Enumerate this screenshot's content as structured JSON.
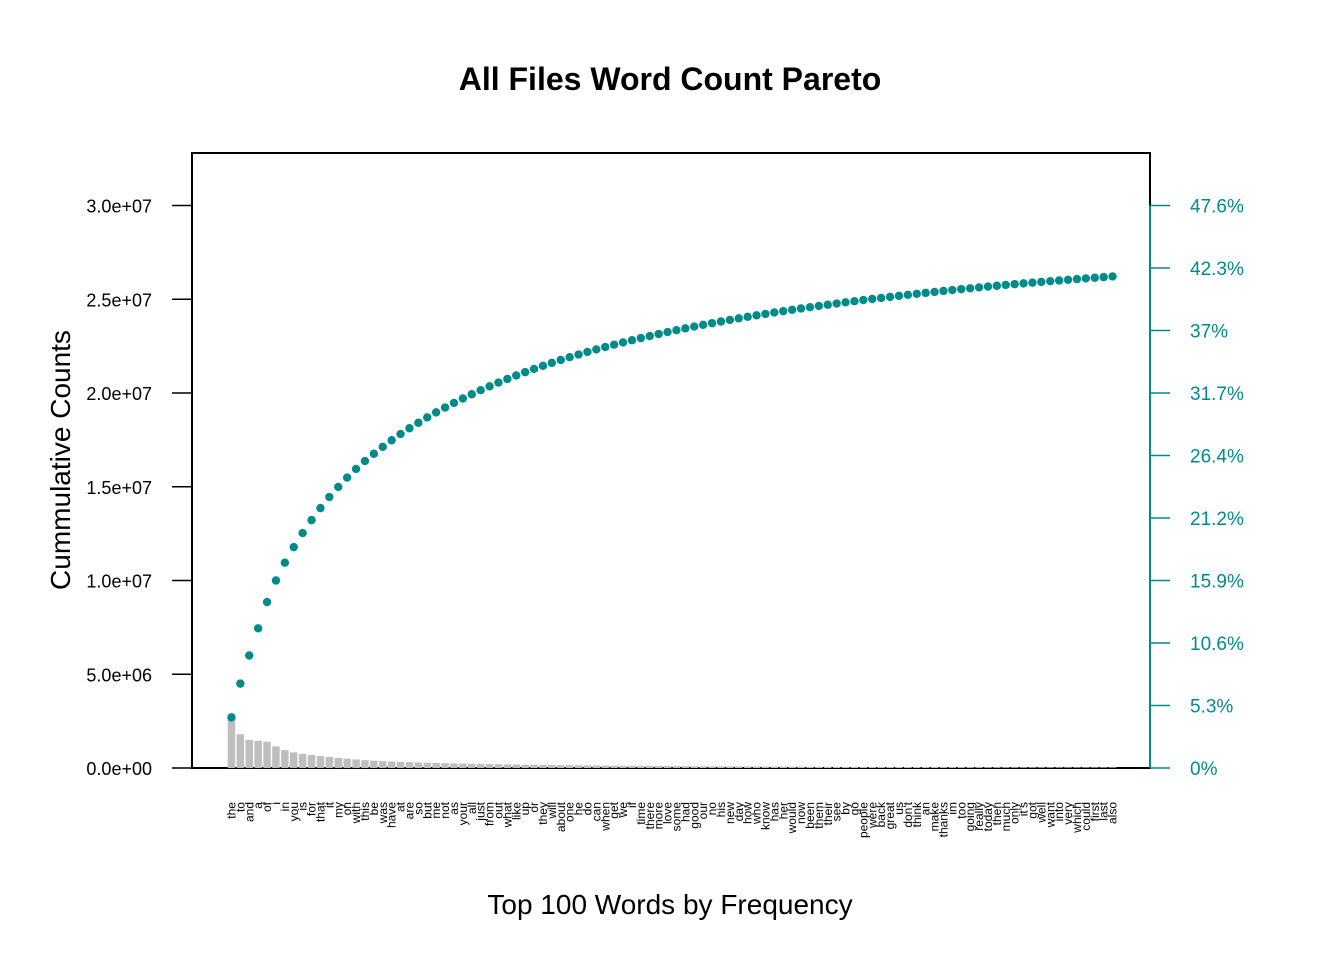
{
  "colors": {
    "accent": "#008b8b",
    "bar": "#bebebe",
    "frame": "#000000"
  },
  "chart_data": {
    "type": "bar",
    "title": "All Files Word Count Pareto",
    "xlabel": "Top 100 Words by Frequency",
    "ylabel": "Cummulative Counts",
    "ylim": [
      0,
      32800000
    ],
    "y_ticks": [
      0,
      5000000,
      10000000,
      15000000,
      20000000,
      25000000,
      30000000
    ],
    "y_tick_labels": [
      "0.0e+00",
      "5.0e+06",
      "1.0e+07",
      "1.5e+07",
      "2.0e+07",
      "2.5e+07",
      "3.0e+07"
    ],
    "y2_ticks": [
      0,
      3333333,
      6666667,
      10000000,
      13333333,
      16666667,
      20000000,
      23333333,
      26666667,
      30000000
    ],
    "y2_tick_labels": [
      "0%",
      "5.3%",
      "10.6%",
      "15.9%",
      "21.2%",
      "26.4%",
      "31.7%",
      "37%",
      "42.3%",
      "47.6%"
    ],
    "grid": false,
    "categories": [
      "the",
      "to",
      "and",
      "a",
      "of",
      "i",
      "in",
      "you",
      "is",
      "for",
      "that",
      "it",
      "my",
      "on",
      "with",
      "this",
      "be",
      "was",
      "have",
      "at",
      "are",
      "so",
      "but",
      "me",
      "not",
      "as",
      "your",
      "all",
      "just",
      "from",
      "out",
      "what",
      "like",
      "up",
      "or",
      "they",
      "will",
      "about",
      "one",
      "he",
      "do",
      "can",
      "when",
      "get",
      "we",
      "if",
      "time",
      "there",
      "more",
      "love",
      "some",
      "had",
      "good",
      "our",
      "no",
      "his",
      "new",
      "day",
      "how",
      "who",
      "know",
      "has",
      "her",
      "would",
      "now",
      "been",
      "them",
      "their",
      "see",
      "by",
      "go",
      "people",
      "were",
      "back",
      "great",
      "us",
      "don't",
      "think",
      "an",
      "make",
      "thanks",
      "im",
      "too",
      "going",
      "really",
      "today",
      "then",
      "much",
      "only",
      "it's",
      "got",
      "well",
      "want",
      "into",
      "very",
      "which",
      "could",
      "first",
      "last",
      "also"
    ],
    "series": [
      {
        "name": "",
        "kind": "bar",
        "values": [
          2700000,
          1800000,
          1500000,
          1450000,
          1400000,
          1150000,
          950000,
          830000,
          750000,
          690000,
          640000,
          590000,
          540000,
          500000,
          460000,
          420000,
          390000,
          370000,
          350000,
          330000,
          310000,
          295000,
          282000,
          270000,
          258000,
          246000,
          236000,
          226000,
          217000,
          208000,
          200000,
          192000,
          185000,
          178000,
          171000,
          165000,
          159000,
          153000,
          148000,
          143000,
          138000,
          133000,
          129000,
          125000,
          121000,
          117000,
          113000,
          110000,
          107000,
          104000,
          101000,
          98000,
          95000,
          92500,
          90000,
          87500,
          85000,
          83000,
          81000,
          79000,
          77000,
          75000,
          73000,
          71500,
          70000,
          68500,
          67000,
          65500,
          64000,
          62500,
          61000,
          59500,
          58000,
          57000,
          56000,
          55000,
          54000,
          53000,
          52000,
          51000,
          50000,
          49000,
          48000,
          47000,
          46000,
          45000,
          44000,
          43000,
          42000,
          41000,
          40000,
          39000,
          38000,
          37500,
          37000,
          36500,
          36000,
          35500,
          35000,
          34500
        ]
      },
      {
        "name": "",
        "kind": "cumulative-points",
        "values": [
          2700000,
          4500000,
          6000000,
          7450000,
          8850000,
          10000000,
          10950000,
          11780000,
          12530000,
          13220000,
          13860000,
          14450000,
          14990000,
          15490000,
          15950000,
          16370000,
          16760000,
          17130000,
          17480000,
          17810000,
          18120000,
          18415000,
          18697000,
          18967000,
          19225000,
          19471000,
          19707000,
          19933000,
          20150000,
          20358000,
          20558000,
          20750000,
          20935000,
          21113000,
          21284000,
          21449000,
          21608000,
          21761000,
          21909000,
          22052000,
          22190000,
          22323000,
          22452000,
          22577000,
          22698000,
          22815000,
          22928000,
          23038000,
          23145000,
          23249000,
          23350000,
          23448000,
          23543000,
          23635500,
          23725500,
          23813000,
          23898000,
          23981000,
          24062000,
          24141000,
          24218000,
          24293000,
          24366000,
          24437500,
          24507500,
          24576000,
          24643000,
          24708500,
          24772500,
          24835000,
          24896000,
          24955500,
          25013500,
          25070500,
          25126500,
          25181500,
          25235500,
          25288500,
          25340500,
          25391500,
          25441500,
          25490500,
          25538500,
          25585500,
          25631500,
          25676500,
          25720500,
          25763500,
          25805500,
          25846500,
          25886500,
          25925500,
          25963500,
          26001000,
          26038000,
          26074500,
          26110500,
          26146000,
          26181000,
          26215500
        ]
      }
    ]
  }
}
